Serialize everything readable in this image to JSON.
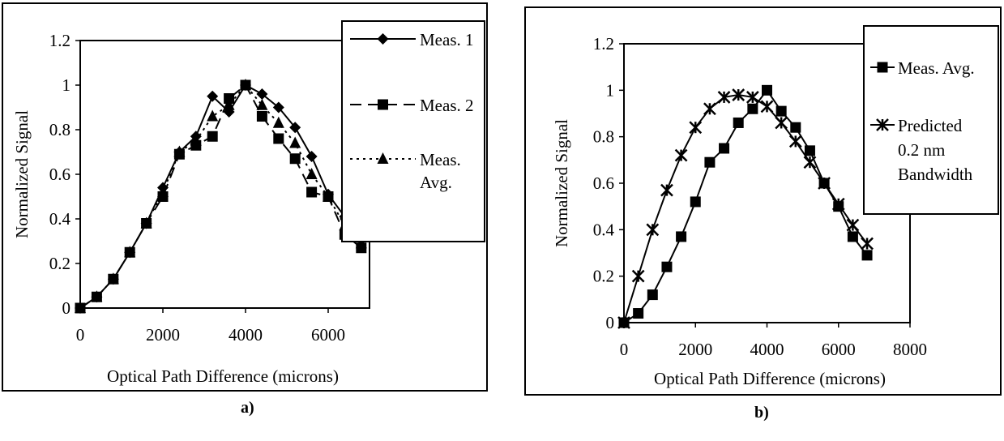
{
  "captions": {
    "a": "a)",
    "b": "b)"
  },
  "chart_data": [
    {
      "type": "line",
      "panel": "a",
      "xlabel": "Optical Path Difference  (microns)",
      "ylabel": "Normalized Signal",
      "xlim": [
        0,
        7000
      ],
      "ylim": [
        0,
        1.2
      ],
      "xticks": [
        "0",
        "2000",
        "4000",
        "6000"
      ],
      "yticks": [
        "0",
        "0.2",
        "0.4",
        "0.6",
        "0.8",
        "1",
        "1.2"
      ],
      "grid": false,
      "legend": "top-right",
      "series": [
        {
          "name": "Meas. 1",
          "marker": "diamond",
          "dash": "solid",
          "x": [
            0,
            400,
            800,
            1200,
            1600,
            2000,
            2400,
            2800,
            3200,
            3600,
            4000,
            4400,
            4800,
            5200,
            5600,
            6000,
            6400,
            6800
          ],
          "y": [
            0,
            0.05,
            0.13,
            0.25,
            0.38,
            0.54,
            0.7,
            0.77,
            0.95,
            0.88,
            1.0,
            0.96,
            0.9,
            0.81,
            0.68,
            0.51,
            0.41,
            0.31
          ]
        },
        {
          "name": "Meas. 2",
          "marker": "square",
          "dash": "dashed",
          "x": [
            0,
            400,
            800,
            1200,
            1600,
            2000,
            2400,
            2800,
            3200,
            3600,
            4000,
            4400,
            4800,
            5200,
            5600,
            6000,
            6400,
            6800
          ],
          "y": [
            0,
            0.05,
            0.13,
            0.25,
            0.38,
            0.5,
            0.69,
            0.73,
            0.77,
            0.94,
            1.0,
            0.86,
            0.76,
            0.67,
            0.52,
            0.5,
            0.33,
            0.27
          ]
        },
        {
          "name": "Meas. Avg.",
          "marker": "triangle",
          "dash": "dotted",
          "x": [
            0,
            400,
            800,
            1200,
            1600,
            2000,
            2400,
            2800,
            3200,
            3600,
            4000,
            4400,
            4800,
            5200,
            5600,
            6000,
            6400,
            6800
          ],
          "y": [
            0,
            0.05,
            0.13,
            0.25,
            0.38,
            0.52,
            0.7,
            0.75,
            0.86,
            0.91,
            1.0,
            0.91,
            0.83,
            0.74,
            0.6,
            0.5,
            0.37,
            0.29
          ]
        }
      ]
    },
    {
      "type": "line",
      "panel": "b",
      "xlabel": "Optical Path Difference (microns)",
      "ylabel": "Normalized  Signal",
      "xlim": [
        0,
        8000
      ],
      "ylim": [
        0,
        1.2
      ],
      "xticks": [
        "0",
        "2000",
        "4000",
        "6000",
        "8000"
      ],
      "yticks": [
        "0",
        "0.2",
        "0.4",
        "0.6",
        "0.8",
        "1",
        "1.2"
      ],
      "grid": false,
      "legend": "top-right",
      "series": [
        {
          "name": "Meas. Avg.",
          "marker": "square",
          "dash": "solid",
          "x": [
            0,
            400,
            800,
            1200,
            1600,
            2000,
            2400,
            2800,
            3200,
            3600,
            4000,
            4400,
            4800,
            5200,
            5600,
            6000,
            6400,
            6800
          ],
          "y": [
            0,
            0.04,
            0.12,
            0.24,
            0.37,
            0.52,
            0.69,
            0.75,
            0.86,
            0.92,
            1.0,
            0.91,
            0.84,
            0.74,
            0.6,
            0.5,
            0.37,
            0.29
          ]
        },
        {
          "name": "Predicted 0.2 nm Bandwidth",
          "label_lines": [
            "Predicted",
            "0.2 nm",
            "Bandwidth"
          ],
          "marker": "asterisk",
          "dash": "solid",
          "x": [
            0,
            400,
            800,
            1200,
            1600,
            2000,
            2400,
            2800,
            3200,
            3600,
            4000,
            4400,
            4800,
            5200,
            5600,
            6000,
            6400,
            6800
          ],
          "y": [
            0,
            0.2,
            0.4,
            0.57,
            0.72,
            0.84,
            0.92,
            0.97,
            0.98,
            0.97,
            0.93,
            0.86,
            0.78,
            0.69,
            0.6,
            0.51,
            0.42,
            0.34
          ]
        }
      ]
    }
  ]
}
